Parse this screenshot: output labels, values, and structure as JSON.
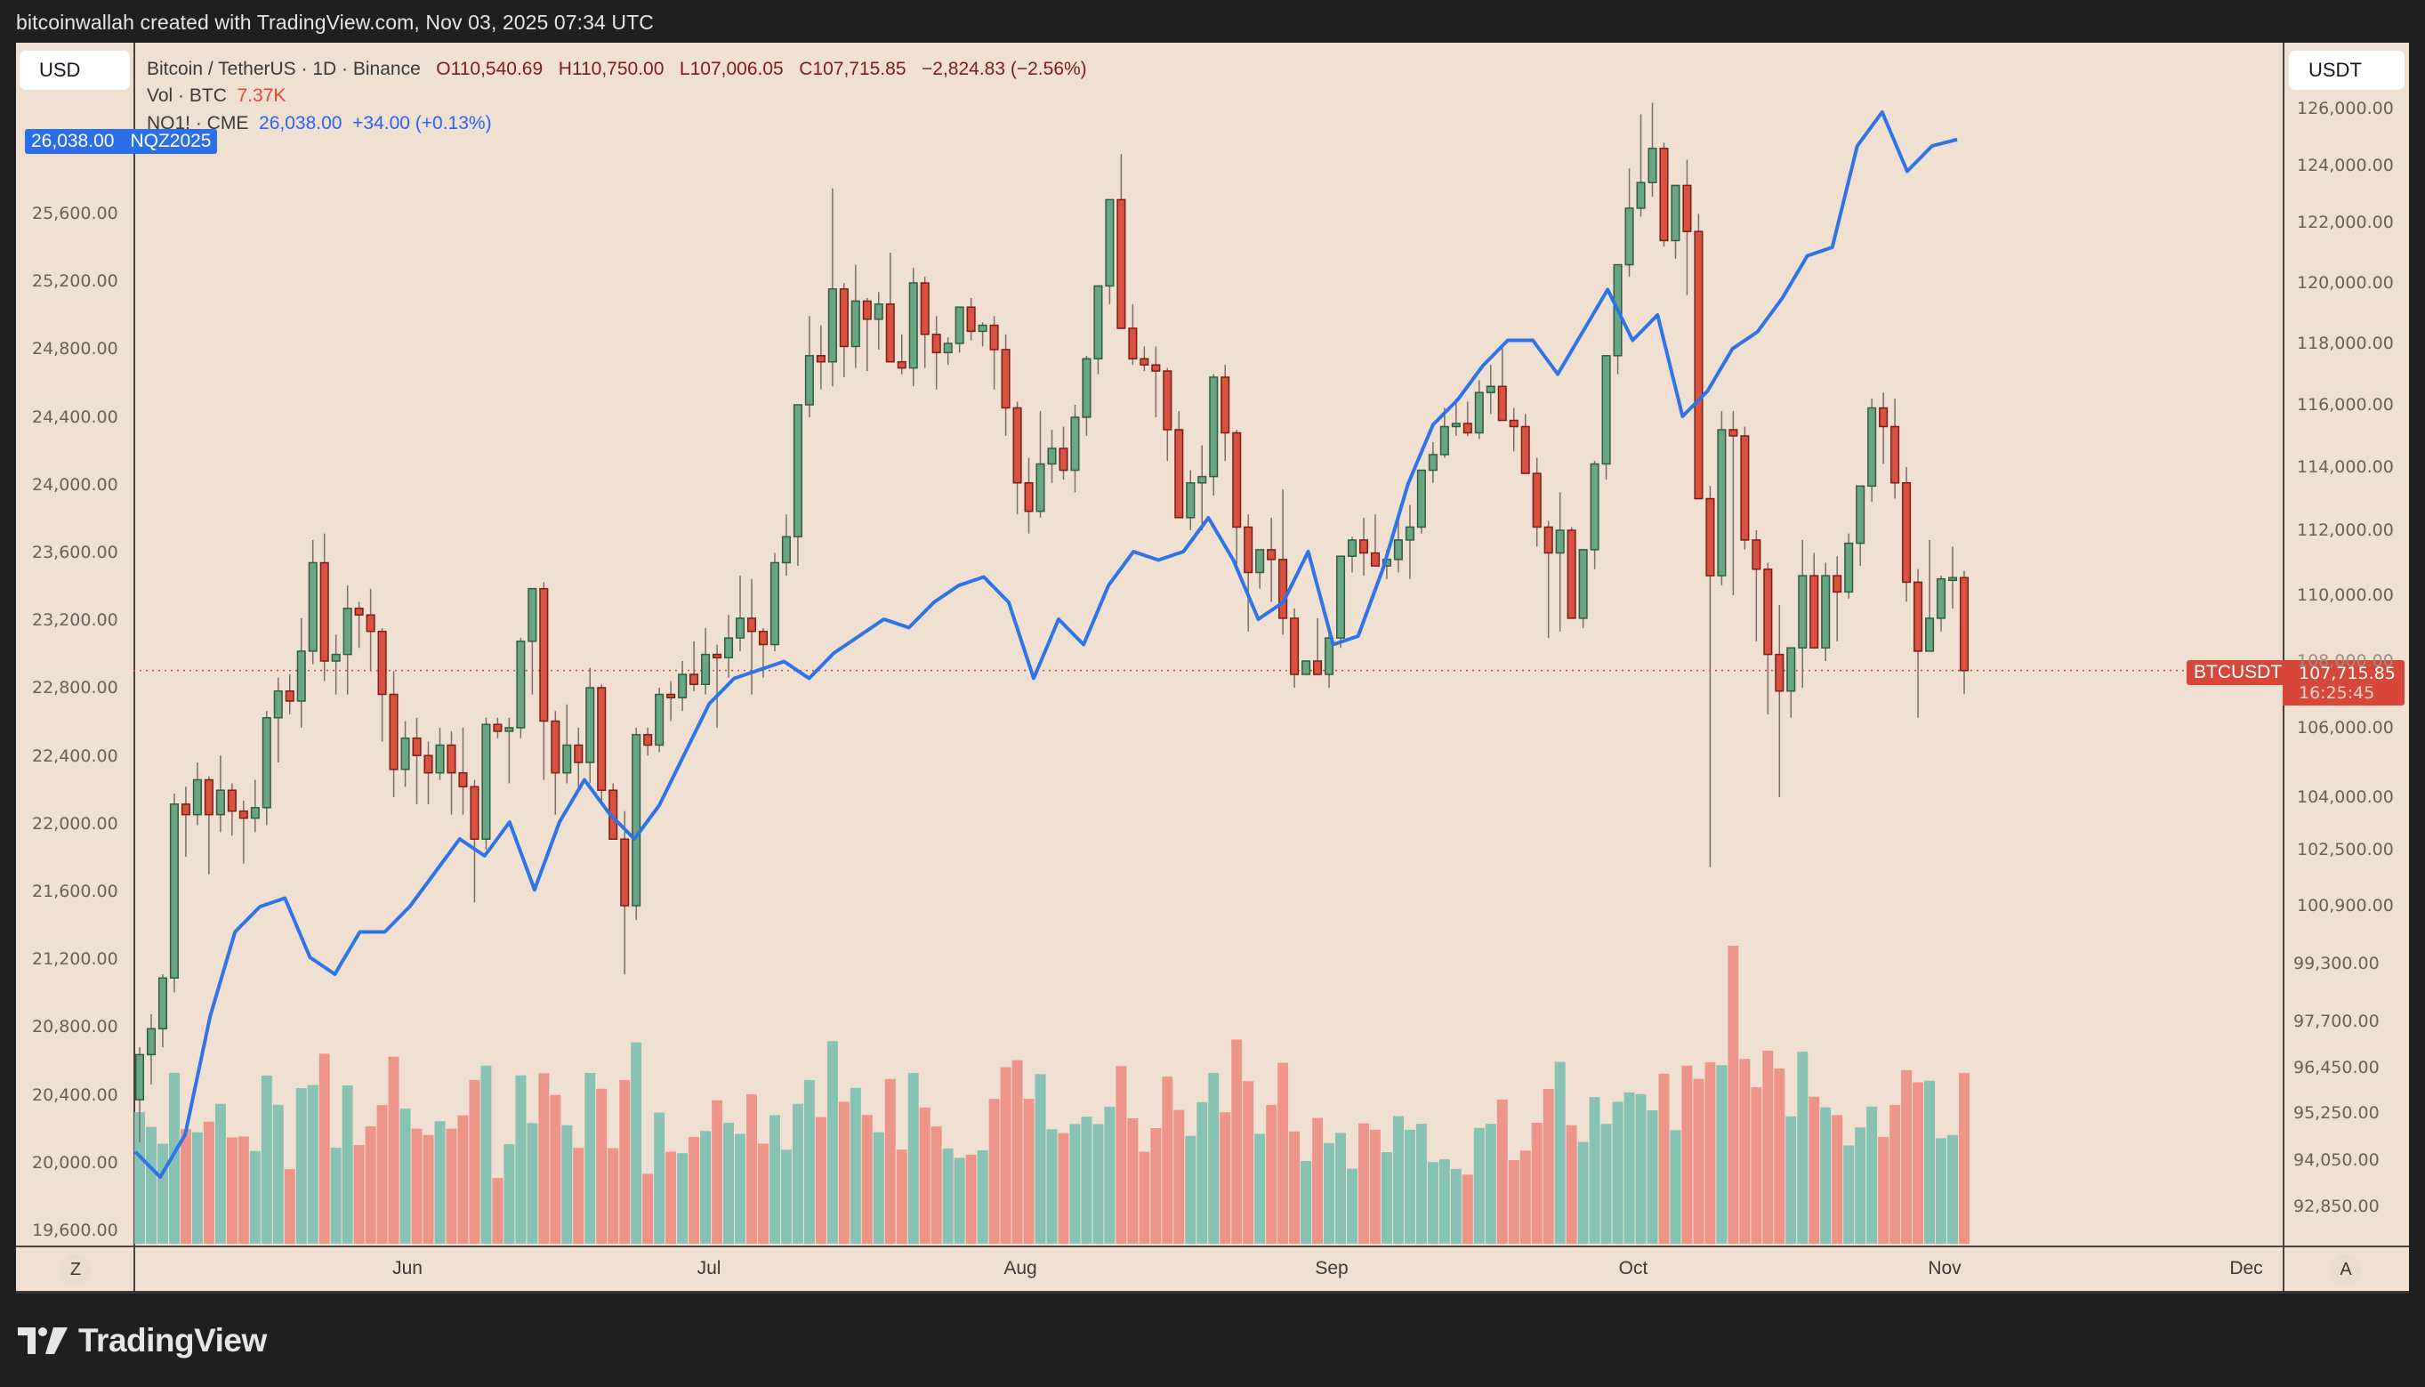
{
  "header": {
    "attribution": "bitcoinwallah created with TradingView.com, Nov 03, 2025 07:34 UTC"
  },
  "toolbar": {
    "left_currency": "USD",
    "right_currency": "USDT",
    "left_scale_button": "Z",
    "right_scale_button": "A"
  },
  "legend": {
    "symbol": "Bitcoin / TetherUS · 1D · Binance",
    "open": "O110,540.69",
    "high": "H110,750.00",
    "low": "L107,006.05",
    "close": "C107,715.85",
    "change": "−2,824.83 (−2.56%)",
    "vol_label": "Vol · BTC",
    "vol_value": "7.37K",
    "nq_label": "NQ1! · CME",
    "nq_value": "26,038.00",
    "nq_change": "+34.00 (+0.13%)"
  },
  "nq_tag": {
    "value": "26,038.00",
    "label": "NQZ2025"
  },
  "price_tag": {
    "symbol": "BTCUSDT",
    "price": "107,715.85",
    "countdown": "16:25:45"
  },
  "footer": {
    "brand": "TradingView"
  },
  "colors": {
    "up": "#6aa584",
    "down": "#d95241",
    "up_border": "#2f5e3f",
    "down_border": "#7a1e16",
    "vol_up": "#88c2b2",
    "vol_down": "#ee958a",
    "nq_line": "#2f74e6",
    "bg": "#f0e0d2",
    "tag_red": "#d6473a",
    "tag_blue": "#2a6ee8"
  },
  "chart_data": {
    "type": "candlestick",
    "title": "Bitcoin / TetherUS · 1D · Binance with NQ1! overlay",
    "xlabel": "",
    "ylabel_right": "USDT",
    "ylabel_left": "USD",
    "x_ticks": [
      "Jun",
      "Jul",
      "Aug",
      "Sep",
      "Oct",
      "Nov",
      "Dec"
    ],
    "right_axis_ticks": [
      "126,000.00",
      "124,000.00",
      "122,000.00",
      "120,000.00",
      "118,000.00",
      "116,000.00",
      "114,000.00",
      "112,000.00",
      "110,000.00",
      "108,000.00",
      "106,000.00",
      "104,000.00",
      "102,500.00",
      "100,900.00",
      "99,300.00",
      "97,700.00",
      "96,450.00",
      "95,250.00",
      "94,050.00",
      "92,850.00"
    ],
    "left_axis_ticks": [
      "25,600.00",
      "25,200.00",
      "24,800.00",
      "24,400.00",
      "24,000.00",
      "23,600.00",
      "23,200.00",
      "22,800.00",
      "22,400.00",
      "22,000.00",
      "21,600.00",
      "21,200.00",
      "20,800.00",
      "20,400.00",
      "20,000.00",
      "19,600.00"
    ],
    "btc_last": 107715.85,
    "nq_last": 26038.0,
    "btc_ohlc_daily": [
      [
        95600,
        97000,
        94500,
        96800
      ],
      [
        96800,
        97900,
        96000,
        97500
      ],
      [
        97500,
        99000,
        97000,
        98900
      ],
      [
        98900,
        104100,
        98500,
        103800
      ],
      [
        103800,
        104300,
        102300,
        103500
      ],
      [
        103500,
        105000,
        103200,
        104500
      ],
      [
        104500,
        104600,
        101800,
        103500
      ],
      [
        103500,
        105200,
        103000,
        104200
      ],
      [
        104200,
        104400,
        102900,
        103600
      ],
      [
        103600,
        103900,
        102100,
        103400
      ],
      [
        103400,
        104500,
        103000,
        103700
      ],
      [
        103700,
        106500,
        103200,
        106300
      ],
      [
        106300,
        107500,
        105000,
        107100
      ],
      [
        107100,
        107600,
        106400,
        106800
      ],
      [
        106800,
        109300,
        106000,
        108300
      ],
      [
        108300,
        111700,
        107900,
        111000
      ],
      [
        111000,
        111900,
        107400,
        108000
      ],
      [
        108000,
        108800,
        107000,
        108200
      ],
      [
        108200,
        110300,
        107000,
        109600
      ],
      [
        109600,
        109800,
        108400,
        109400
      ],
      [
        109400,
        110200,
        107700,
        108900
      ],
      [
        108900,
        109000,
        105600,
        107000
      ],
      [
        107000,
        107700,
        104000,
        104800
      ],
      [
        104800,
        106200,
        104300,
        105700
      ],
      [
        105700,
        106300,
        103800,
        105200
      ],
      [
        105200,
        105600,
        103800,
        104700
      ],
      [
        104700,
        106000,
        104500,
        105500
      ],
      [
        105500,
        105900,
        103500,
        104700
      ],
      [
        104700,
        106000,
        103500,
        104300
      ],
      [
        104300,
        104500,
        101000,
        102800
      ],
      [
        102800,
        106300,
        102500,
        106100
      ],
      [
        106100,
        106300,
        105700,
        105900
      ],
      [
        105900,
        106300,
        104400,
        106000
      ],
      [
        106000,
        108700,
        105700,
        108600
      ],
      [
        108600,
        109200,
        107000,
        110200
      ],
      [
        110200,
        110400,
        104500,
        106200
      ],
      [
        106200,
        106500,
        103500,
        104700
      ],
      [
        104700,
        106700,
        104400,
        105500
      ],
      [
        105500,
        106000,
        104200,
        105000
      ],
      [
        105000,
        107800,
        104400,
        107200
      ],
      [
        107200,
        107300,
        103800,
        104200
      ],
      [
        104200,
        104400,
        102900,
        102800
      ],
      [
        102800,
        103600,
        99000,
        100900
      ],
      [
        100900,
        106000,
        100500,
        105800
      ],
      [
        105800,
        106000,
        105200,
        105500
      ],
      [
        105500,
        107200,
        105300,
        107000
      ],
      [
        107000,
        107400,
        106200,
        106900
      ],
      [
        106900,
        108000,
        106500,
        107600
      ],
      [
        107600,
        108600,
        107100,
        107300
      ],
      [
        107300,
        109000,
        107000,
        108200
      ],
      [
        108200,
        108500,
        106000,
        108100
      ],
      [
        108100,
        109400,
        107500,
        108700
      ],
      [
        108700,
        110600,
        108300,
        109300
      ],
      [
        109300,
        110500,
        107000,
        108900
      ],
      [
        108900,
        109000,
        107500,
        108500
      ],
      [
        108500,
        111300,
        108300,
        111000
      ],
      [
        111000,
        112500,
        110600,
        111800
      ],
      [
        111800,
        113800,
        110900,
        116000
      ],
      [
        116000,
        118900,
        115600,
        117600
      ],
      [
        117600,
        118600,
        116500,
        117400
      ],
      [
        117400,
        123200,
        116600,
        119800
      ],
      [
        119800,
        120000,
        116900,
        117900
      ],
      [
        117900,
        120600,
        117200,
        119400
      ],
      [
        119400,
        119500,
        117100,
        118800
      ],
      [
        118800,
        119700,
        117800,
        119300
      ],
      [
        119300,
        121000,
        117900,
        117400
      ],
      [
        117400,
        118300,
        117000,
        117200
      ],
      [
        117200,
        120500,
        116600,
        120000
      ],
      [
        120000,
        120200,
        117200,
        118300
      ],
      [
        118300,
        118900,
        116500,
        117700
      ],
      [
        117700,
        118200,
        117300,
        118000
      ],
      [
        118000,
        119200,
        117700,
        119200
      ],
      [
        119200,
        119500,
        118100,
        118400
      ],
      [
        118400,
        118700,
        117900,
        118600
      ],
      [
        118600,
        118900,
        116500,
        117800
      ],
      [
        117800,
        118300,
        115000,
        115900
      ],
      [
        115900,
        116100,
        112500,
        113500
      ],
      [
        113500,
        114300,
        111900,
        112600
      ],
      [
        112600,
        115800,
        112400,
        114100
      ],
      [
        114100,
        115200,
        113500,
        114600
      ],
      [
        114600,
        115300,
        113600,
        113900
      ],
      [
        113900,
        116000,
        113200,
        115600
      ],
      [
        115600,
        117600,
        115000,
        117500
      ],
      [
        117500,
        119300,
        117000,
        119900
      ],
      [
        119900,
        122400,
        119300,
        122800
      ],
      [
        122800,
        124400,
        118600,
        118500
      ],
      [
        118500,
        119300,
        117300,
        117500
      ],
      [
        117500,
        117900,
        117100,
        117300
      ],
      [
        117300,
        117900,
        115600,
        117100
      ],
      [
        117100,
        117200,
        114200,
        115200
      ],
      [
        115200,
        115800,
        112500,
        112400
      ],
      [
        112400,
        113900,
        112000,
        113500
      ],
      [
        113500,
        114700,
        112000,
        113700
      ],
      [
        113700,
        117000,
        113100,
        116900
      ],
      [
        116900,
        117300,
        114200,
        115100
      ],
      [
        115100,
        115200,
        110800,
        112100
      ],
      [
        112100,
        112500,
        108900,
        110700
      ],
      [
        110700,
        111400,
        110200,
        111400
      ],
      [
        111400,
        112400,
        109800,
        111100
      ],
      [
        111100,
        113300,
        108800,
        109300
      ],
      [
        109300,
        109600,
        107200,
        107600
      ],
      [
        107600,
        108000,
        107600,
        108000
      ],
      [
        108000,
        109300,
        107600,
        107600
      ],
      [
        107600,
        109000,
        107200,
        108700
      ],
      [
        108700,
        110900,
        108400,
        111200
      ],
      [
        111200,
        111800,
        110700,
        111700
      ],
      [
        111700,
        112400,
        110600,
        111300
      ],
      [
        111300,
        112500,
        110900,
        110900
      ],
      [
        110900,
        111400,
        110500,
        111100
      ],
      [
        111100,
        112500,
        110700,
        111700
      ],
      [
        111700,
        112800,
        110500,
        112100
      ],
      [
        112100,
        113500,
        111900,
        113900
      ],
      [
        113900,
        114800,
        113500,
        114400
      ],
      [
        114400,
        115900,
        114300,
        115300
      ],
      [
        115300,
        116200,
        115000,
        115400
      ],
      [
        115400,
        116100,
        115000,
        115100
      ],
      [
        115100,
        116800,
        114900,
        116400
      ],
      [
        116400,
        117300,
        115700,
        116600
      ],
      [
        116600,
        117900,
        115500,
        115500
      ],
      [
        115500,
        115900,
        114500,
        115300
      ],
      [
        115300,
        115700,
        114500,
        113800
      ],
      [
        113800,
        114300,
        111500,
        112100
      ],
      [
        112100,
        112300,
        108700,
        111300
      ],
      [
        111300,
        113200,
        108900,
        112000
      ],
      [
        112000,
        112100,
        109400,
        109300
      ],
      [
        109300,
        110700,
        109000,
        111400
      ],
      [
        111400,
        114200,
        110800,
        114100
      ],
      [
        114100,
        116000,
        113600,
        117600
      ],
      [
        117600,
        119400,
        117000,
        120600
      ],
      [
        120600,
        123900,
        120200,
        122500
      ],
      [
        122500,
        125800,
        122200,
        123400
      ],
      [
        123400,
        126200,
        122900,
        124600
      ],
      [
        124600,
        124800,
        121200,
        121400
      ],
      [
        121400,
        123300,
        120800,
        123300
      ],
      [
        123300,
        124200,
        119600,
        121700
      ],
      [
        121700,
        122300,
        113800,
        113000
      ],
      [
        113000,
        113400,
        102000,
        110600
      ],
      [
        110600,
        115800,
        110300,
        115200
      ],
      [
        115200,
        115800,
        110000,
        115000
      ],
      [
        115000,
        115300,
        111400,
        111700
      ],
      [
        111700,
        112000,
        108600,
        110800
      ],
      [
        110800,
        111000,
        106400,
        108200
      ],
      [
        108200,
        109700,
        104000,
        107100
      ],
      [
        107100,
        108000,
        106300,
        108400
      ],
      [
        108400,
        111700,
        107200,
        110600
      ],
      [
        110600,
        111300,
        108500,
        108400
      ],
      [
        108400,
        111000,
        108000,
        110600
      ],
      [
        110600,
        111200,
        108600,
        110100
      ],
      [
        110100,
        111900,
        109900,
        111600
      ],
      [
        111600,
        112300,
        110900,
        113400
      ],
      [
        113400,
        116200,
        112900,
        115900
      ],
      [
        115900,
        116400,
        114100,
        115300
      ],
      [
        115300,
        116200,
        113000,
        113500
      ],
      [
        113500,
        114000,
        109800,
        110400
      ],
      [
        110400,
        110800,
        106300,
        108300
      ],
      [
        108300,
        111700,
        108300,
        109300
      ],
      [
        109300,
        110600,
        108900,
        110500
      ],
      [
        110500,
        111500,
        109600,
        110540
      ],
      [
        110540,
        110750,
        107006,
        107715
      ]
    ],
    "nq_close_weekly_points_approx": [
      20050,
      19900,
      20150,
      20850,
      21350,
      21500,
      21550,
      21200,
      21100,
      21350,
      21350,
      21500,
      21700,
      21900,
      21800,
      22000,
      21600,
      22000,
      22250,
      22050,
      21900,
      22100,
      22400,
      22700,
      22850,
      22900,
      22950,
      22850,
      23000,
      23100,
      23200,
      23150,
      23300,
      23400,
      23450,
      23300,
      22850,
      23200,
      23050,
      23400,
      23600,
      23550,
      23600,
      23800,
      23550,
      23200,
      23300,
      23600,
      23050,
      23100,
      23500,
      24000,
      24350,
      24500,
      24700,
      24850,
      24850,
      24650,
      24900,
      25150,
      24850,
      25000,
      24400,
      24550,
      24800,
      24900,
      25100,
      25350,
      25400,
      26000,
      26200,
      25850,
      26000,
      26038
    ]
  }
}
